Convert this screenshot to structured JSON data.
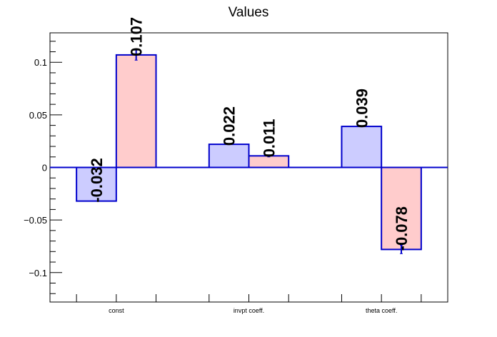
{
  "chart_data": {
    "type": "bar",
    "title": "Values",
    "categories": [
      "const",
      "invpt coeff.",
      "theta coeff."
    ],
    "ylim": [
      -0.128,
      0.128
    ],
    "y_ticks": [
      -0.1,
      -0.05,
      0,
      0.05,
      0.1
    ],
    "y_tick_labels": [
      "−0.1",
      "−0.05",
      "0",
      "0.05",
      "0.1"
    ],
    "series": [
      {
        "values": [
          -0.032,
          0.022,
          0.039
        ],
        "labels": [
          "-0.032",
          "0.022",
          "0.039"
        ],
        "errors": [
          0,
          0,
          0
        ],
        "color": "#ccccff"
      },
      {
        "values": [
          0.107,
          0.011,
          -0.078
        ],
        "labels": [
          "0.107",
          "0.011",
          "-0.078"
        ],
        "errors": [
          0.005,
          0.001,
          0.004
        ],
        "color": "#ffcccc"
      }
    ],
    "bar_outline_color": "#0000cc",
    "grid": false,
    "legend": "none"
  }
}
